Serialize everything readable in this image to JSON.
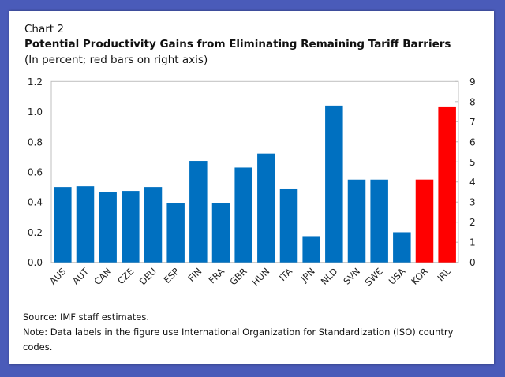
{
  "chart_label": "Chart 2",
  "footer": {
    "source": "Source: IMF staff estimates.",
    "note_line1": "Note: Data labels in the figure use International Organization for Standardization (ISO) country",
    "note_line2": "codes."
  },
  "chart_data": {
    "type": "bar",
    "title": "Potential Productivity Gains from Eliminating Remaining Tariff Barriers",
    "subtitle": "(In percent; red bars on right axis)",
    "categories": [
      "AUS",
      "AUT",
      "CAN",
      "CZE",
      "DEU",
      "ESP",
      "FIN",
      "FRA",
      "GBR",
      "HUN",
      "ITA",
      "JPN",
      "NLD",
      "SVN",
      "SWE",
      "USA",
      "KOR",
      "IRL"
    ],
    "values": [
      0.5,
      0.505,
      0.467,
      0.474,
      0.5,
      0.394,
      0.673,
      0.394,
      0.629,
      0.722,
      0.485,
      0.174,
      1.04,
      0.549,
      0.549,
      0.2,
      4.12,
      7.72
    ],
    "axis": [
      "left",
      "left",
      "left",
      "left",
      "left",
      "left",
      "left",
      "left",
      "left",
      "left",
      "left",
      "left",
      "left",
      "left",
      "left",
      "left",
      "right",
      "right"
    ],
    "left_axis": {
      "ylim": [
        0,
        1.2
      ],
      "ticks": [
        "0.0",
        "0.2",
        "0.4",
        "0.6",
        "0.8",
        "1.0",
        "1.2"
      ]
    },
    "right_axis": {
      "ylim": [
        0,
        9
      ],
      "ticks": [
        "0",
        "1",
        "2",
        "3",
        "4",
        "5",
        "6",
        "7",
        "8",
        "9"
      ]
    },
    "colors": {
      "left": "#0070c0",
      "right": "#ff0000"
    },
    "grid": false,
    "legend": "none"
  }
}
